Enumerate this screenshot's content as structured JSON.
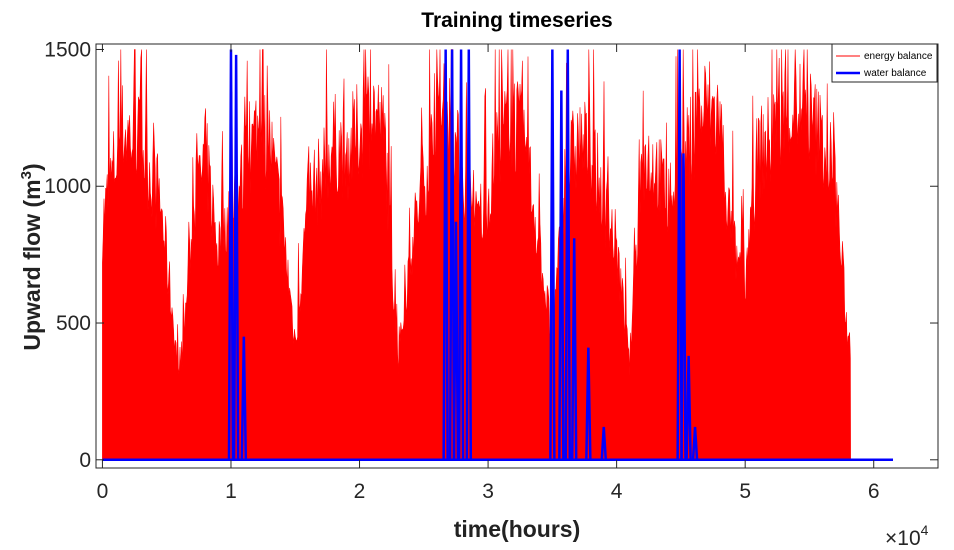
{
  "chart_data": {
    "type": "line",
    "title": "Training timeseries",
    "xlabel": "time(hours)",
    "ylabel": "Upward flow (m",
    "ylabel_sup": "3",
    "ylabel_close": ")",
    "x_multiplier_base": "×10",
    "x_multiplier_exp": "4",
    "xlim": [
      -0.05,
      6.5
    ],
    "ylim": [
      -30,
      1520
    ],
    "x_ticks": [
      0,
      1,
      2,
      3,
      4,
      5,
      6
    ],
    "x_tick_labels": [
      "0",
      "1",
      "2",
      "3",
      "4",
      "5",
      "6"
    ],
    "y_ticks": [
      0,
      500,
      1000,
      1500
    ],
    "y_tick_labels": [
      "0",
      "500",
      "1000",
      "1500"
    ],
    "legend_position": "top-right",
    "series": [
      {
        "name": "energy balance",
        "color": "#ff0000",
        "x_units": "x10^4 hours",
        "x_range": [
          0,
          5.82
        ],
        "description_points_x": [
          0.0,
          0.15,
          0.3,
          0.45,
          0.55,
          0.6,
          0.7,
          0.8,
          0.9,
          1.0,
          1.1,
          1.2,
          1.3,
          1.4,
          1.5,
          1.6,
          1.7,
          1.8,
          1.9,
          2.0,
          2.1,
          2.2,
          2.3,
          2.4,
          2.5,
          2.6,
          2.7,
          2.8,
          2.9,
          3.0,
          3.1,
          3.2,
          3.3,
          3.4,
          3.5,
          3.6,
          3.7,
          3.8,
          3.9,
          4.0,
          4.1,
          4.2,
          4.3,
          4.4,
          4.5,
          4.6,
          4.7,
          4.8,
          4.9,
          5.0,
          5.1,
          5.2,
          5.3,
          5.4,
          5.5,
          5.6,
          5.7,
          5.8
        ],
        "envelope_top": [
          1000,
          1400,
          1350,
          1100,
          600,
          300,
          1000,
          1300,
          900,
          1100,
          1200,
          1400,
          1350,
          1000,
          500,
          1100,
          1200,
          1350,
          1300,
          1400,
          1500,
          1350,
          400,
          900,
          1200,
          1400,
          1450,
          1200,
          1000,
          1100,
          1400,
          1450,
          1300,
          900,
          500,
          1200,
          1350,
          1300,
          1100,
          900,
          400,
          1300,
          1250,
          1100,
          1200,
          1400,
          1500,
          1450,
          900,
          800,
          1300,
          1350,
          1450,
          1500,
          1450,
          1350,
          1200,
          500
        ]
      },
      {
        "name": "water balance",
        "color": "#0000ff",
        "baseline": 0,
        "x_end": 6.15,
        "spikes": [
          {
            "x": 1.0,
            "y": 1500
          },
          {
            "x": 1.04,
            "y": 1480
          },
          {
            "x": 1.1,
            "y": 450
          },
          {
            "x": 2.67,
            "y": 1500
          },
          {
            "x": 2.72,
            "y": 1500
          },
          {
            "x": 2.75,
            "y": 870
          },
          {
            "x": 2.79,
            "y": 1500
          },
          {
            "x": 2.85,
            "y": 1500
          },
          {
            "x": 3.5,
            "y": 1500
          },
          {
            "x": 3.57,
            "y": 1350
          },
          {
            "x": 3.62,
            "y": 1500
          },
          {
            "x": 3.67,
            "y": 810
          },
          {
            "x": 3.78,
            "y": 410
          },
          {
            "x": 3.9,
            "y": 120
          },
          {
            "x": 4.49,
            "y": 1500
          },
          {
            "x": 4.52,
            "y": 1120
          },
          {
            "x": 4.56,
            "y": 380
          },
          {
            "x": 4.61,
            "y": 120
          }
        ]
      }
    ]
  }
}
